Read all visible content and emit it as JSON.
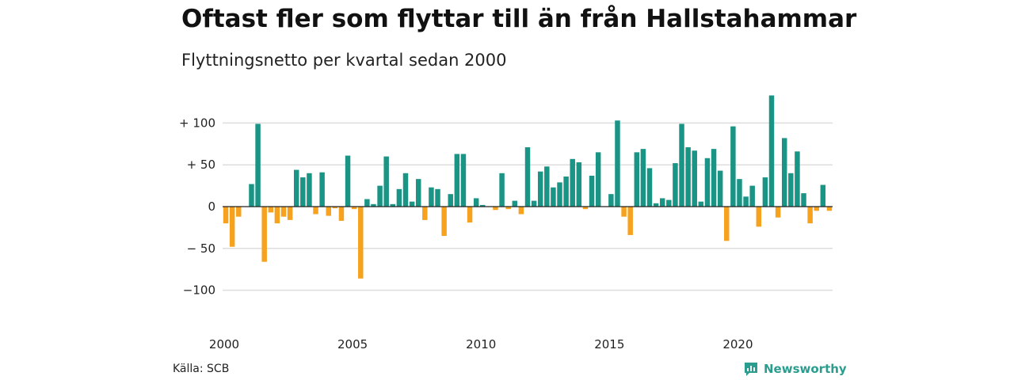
{
  "title": "Oftast fler som flyttar till än från Hallstahammar",
  "subtitle": "Flyttningsnetto per kvartal sedan 2000",
  "source": "Källa: SCB",
  "brand": "Newsworthy",
  "colors": {
    "positive": "#1a9485",
    "negative": "#f6a21f",
    "grid": "#dddddd",
    "brand": "#2a9d8f"
  },
  "chart_data": {
    "type": "bar",
    "ylim": [
      -130,
      140
    ],
    "y_ticks": [
      {
        "value": 100,
        "label": "+ 100"
      },
      {
        "value": 50,
        "label": "+  50"
      },
      {
        "value": 0,
        "label": "0"
      },
      {
        "value": -50,
        "label": "− 50"
      },
      {
        "value": -100,
        "label": "−100"
      }
    ],
    "x_ticks": [
      {
        "value": 2000,
        "label": "2000"
      },
      {
        "value": 2005,
        "label": "2005"
      },
      {
        "value": 2010,
        "label": "2010"
      },
      {
        "value": 2015,
        "label": "2015"
      },
      {
        "value": 2020,
        "label": "2020"
      }
    ],
    "grid": true,
    "start_year": 2000,
    "values": [
      -20,
      -48,
      -12,
      0,
      27,
      99,
      -66,
      -7,
      -20,
      -12,
      -16,
      44,
      35,
      40,
      -9,
      41,
      -11,
      -2,
      -17,
      61,
      -3,
      -86,
      9,
      3,
      25,
      60,
      3,
      21,
      40,
      6,
      33,
      -16,
      23,
      21,
      -35,
      15,
      63,
      63,
      -19,
      10,
      2,
      0,
      -4,
      40,
      -3,
      7,
      -9,
      71,
      7,
      42,
      48,
      23,
      29,
      36,
      57,
      53,
      -3,
      37,
      65,
      0,
      15,
      103,
      -12,
      -34,
      65,
      69,
      46,
      4,
      10,
      8,
      52,
      99,
      71,
      67,
      6,
      58,
      69,
      43,
      -41,
      96,
      33,
      12,
      25,
      -24,
      35,
      133,
      -13,
      82,
      40,
      66,
      16,
      -20,
      -5,
      26,
      -5
    ]
  }
}
